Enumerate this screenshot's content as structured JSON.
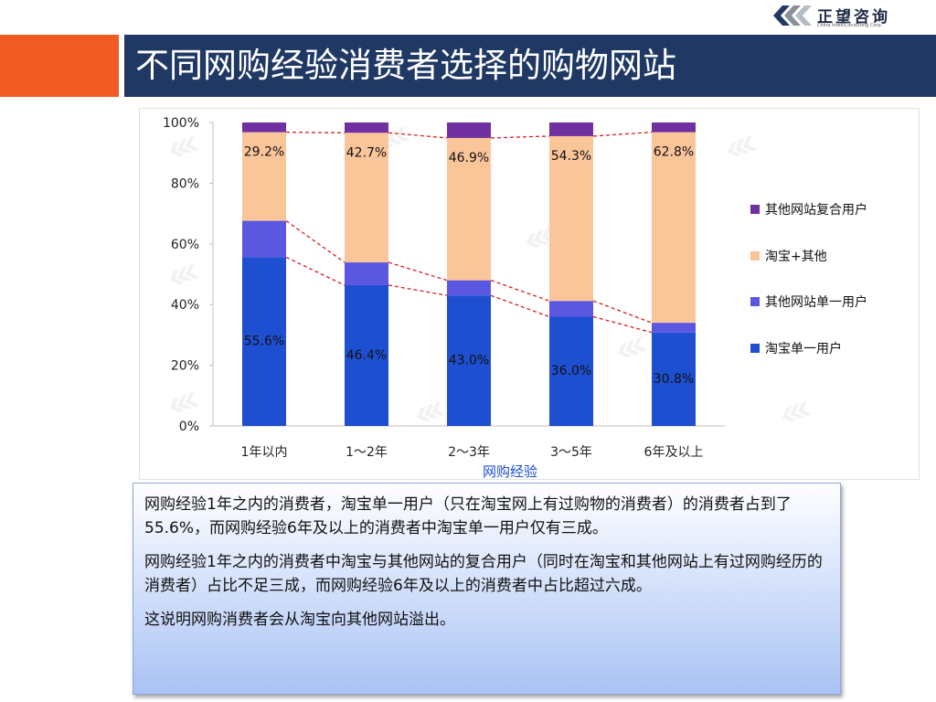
{
  "slide": {
    "title": "不同网购经验消费者选择的购物网站",
    "brand": {
      "name": "正望咨询",
      "subtitle": "China IntelliConsulting Corp."
    },
    "paragraphs": [
      "网购经验1年之内的消费者，淘宝单一用户（只在淘宝网上有过购物的消费者）的消费者占到了55.6%，而网购经验6年及以上的消费者中淘宝单一用户仅有三成。",
      "网购经验1年之内的消费者中淘宝与其他网站的复合用户（同时在淘宝和其他网站上有过网购经历的消费者）占比不足三成，而网购经验6年及以上的消费者中占比超过六成。",
      "这说明网购消费者会从淘宝向其他网站溢出。"
    ]
  },
  "chart_data": {
    "type": "bar",
    "stacked": true,
    "percent_stacked": true,
    "categories": [
      "1年以内",
      "1～2年",
      "2～3年",
      "3～5年",
      "6年及以上"
    ],
    "xlabel": "网购经验",
    "ylabel": "",
    "ylim": [
      0,
      100
    ],
    "yticks": [
      "0%",
      "20%",
      "40%",
      "60%",
      "80%",
      "100%"
    ],
    "series": [
      {
        "name": "淘宝单一用户",
        "color": "#1f4fd1",
        "values": [
          55.6,
          46.4,
          43.0,
          36.0,
          30.8
        ],
        "labels": [
          "55.6%",
          "46.4%",
          "43.0%",
          "36.0%",
          "30.8%"
        ]
      },
      {
        "name": "其他网站单一用户",
        "color": "#5b57e0",
        "values": [
          12.0,
          7.5,
          5.0,
          5.2,
          3.2
        ],
        "labels": []
      },
      {
        "name": "淘宝+其他",
        "color": "#fbc59a",
        "values": [
          29.2,
          42.7,
          46.9,
          54.3,
          62.8
        ],
        "labels": [
          "29.2%",
          "42.7%",
          "46.9%",
          "54.3%",
          "62.8%"
        ]
      },
      {
        "name": "其他网站复合用户",
        "color": "#7030a0",
        "values": [
          3.2,
          3.4,
          5.1,
          4.5,
          3.2
        ],
        "labels": []
      }
    ],
    "legend_position": "right",
    "connector_lines": "dashed red",
    "grid": false
  }
}
